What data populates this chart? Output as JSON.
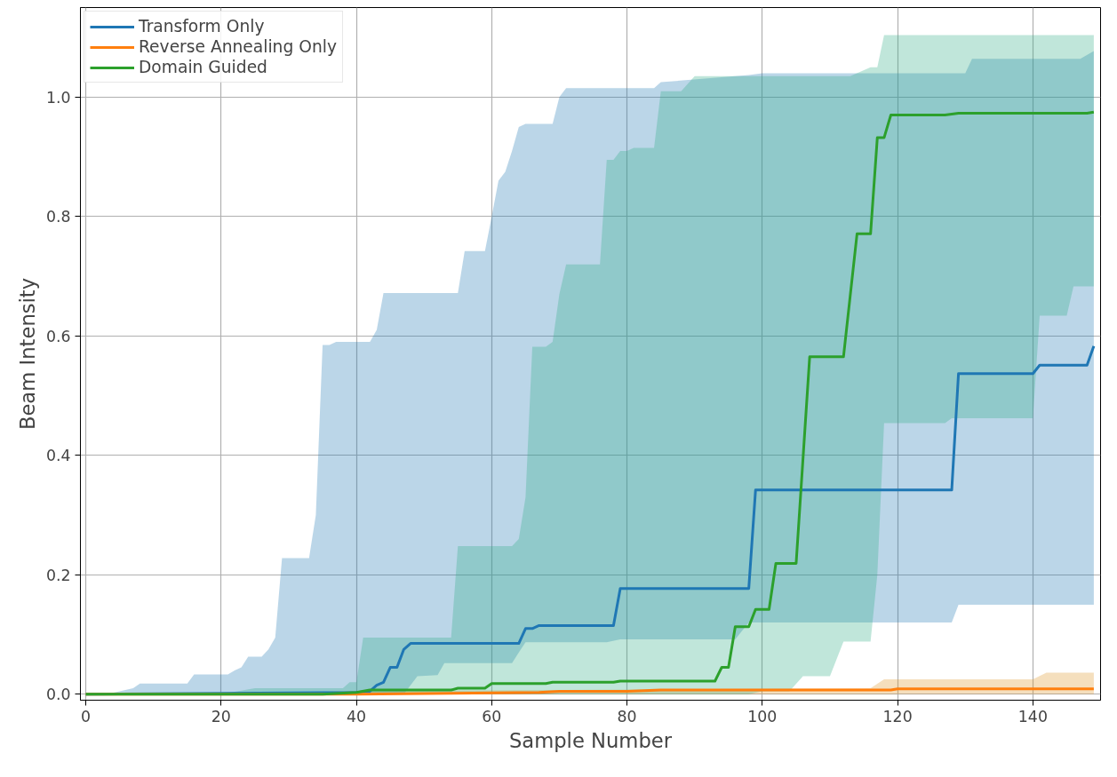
{
  "chart_data": {
    "type": "line",
    "xlabel": "Sample Number",
    "ylabel": "Beam Intensity",
    "xlim": [
      -0.8,
      150
    ],
    "ylim": [
      -0.01,
      1.15
    ],
    "xticks": [
      0,
      20,
      40,
      60,
      80,
      100,
      120,
      140
    ],
    "yticks": [
      {
        "value": 0,
        "label": "0.0"
      },
      {
        "value": 0.2,
        "label": "0.2"
      },
      {
        "value": 0.4,
        "label": "0.4"
      },
      {
        "value": 0.6,
        "label": "0.6"
      },
      {
        "value": 0.8,
        "label": "0.8"
      },
      {
        "value": 1.0,
        "label": "1.0"
      }
    ],
    "grid": true,
    "legend": "top left",
    "line_style": "solid",
    "marker": "none",
    "series": [
      {
        "color": "#1f77b4",
        "x": [
          0,
          3,
          5,
          7,
          8,
          15,
          16,
          21,
          22,
          23,
          24,
          26,
          27,
          28,
          29,
          33,
          34,
          35,
          36,
          37,
          42,
          43,
          44,
          47,
          49,
          52,
          53,
          55,
          56,
          59,
          60,
          61,
          62,
          63,
          64,
          65,
          69,
          70,
          71,
          77,
          79,
          84,
          85,
          96,
          98,
          100,
          128,
          129,
          130,
          131,
          147,
          149
        ],
        "values": [
          null,
          null,
          null,
          null,
          null,
          null,
          null,
          null,
          null,
          null,
          null,
          null,
          null,
          null,
          null,
          null,
          null,
          null,
          null,
          null,
          null,
          null,
          null,
          null,
          null,
          null,
          null,
          null,
          null,
          null,
          null,
          null,
          null,
          null,
          null,
          null,
          null,
          null,
          null,
          null,
          null,
          null,
          null,
          null,
          null,
          null,
          null,
          null,
          null,
          null,
          null,
          null
        ],
        "upper": [
          0,
          0,
          0.005,
          0.01,
          0.018,
          0.018,
          0.033,
          0.033,
          0.04,
          0.045,
          0.063,
          0.063,
          0.075,
          0.095,
          0.228,
          0.228,
          0.3,
          0.585,
          0.585,
          0.59,
          0.59,
          0.61,
          0.672,
          0.672,
          0.672,
          0.672,
          0.672,
          0.672,
          0.742,
          0.742,
          0.8,
          0.86,
          0.875,
          0.91,
          0.95,
          0.955,
          0.955,
          1.0,
          1.015,
          1.015,
          1.015,
          1.015,
          1.025,
          1.035,
          1.037,
          1.04,
          1.04,
          1.04,
          1.04,
          1.064,
          1.064,
          1.077
        ],
        "lower": [
          0,
          0,
          0,
          0,
          0,
          0,
          0,
          0,
          0,
          0,
          0,
          0,
          0,
          0,
          0,
          0,
          0,
          0,
          0,
          0,
          0,
          0,
          0,
          0,
          0.03,
          0.032,
          0.052,
          0.052,
          0.052,
          0.052,
          0.052,
          0.052,
          0.052,
          0.052,
          0.07,
          0.087,
          0.087,
          0.087,
          0.087,
          0.087,
          0.092,
          0.092,
          0.092,
          0.092,
          0.12,
          0.12,
          0.12,
          0.15,
          0.15,
          0.15,
          0.15,
          0.15
        ]
      },
      {
        "color": "#de9426",
        "x": [
          0,
          40,
          116,
          118,
          140,
          142,
          149
        ],
        "values": [
          null,
          null,
          null,
          null,
          null,
          null,
          null
        ],
        "upper": [
          0,
          0.005,
          0.01,
          0.025,
          0.025,
          0.036,
          0.036
        ],
        "lower": [
          0,
          0,
          0,
          0,
          0,
          0,
          0
        ]
      },
      {
        "color": "#2dac84",
        "x": [
          0,
          20,
          25,
          38,
          39,
          40,
          41,
          54,
          55,
          63,
          64,
          65,
          66,
          68,
          69,
          70,
          71,
          76,
          77,
          78,
          79,
          80,
          81,
          84,
          85,
          88,
          90,
          98,
          100,
          104,
          106,
          110,
          112,
          113,
          116,
          117,
          118,
          127,
          128,
          140,
          141,
          145,
          146,
          149
        ],
        "values": [
          null,
          null,
          null,
          null,
          null,
          null,
          null,
          null,
          null,
          null,
          null,
          null,
          null,
          null,
          null,
          null,
          null,
          null,
          null,
          null,
          null,
          null,
          null,
          null,
          null,
          null,
          null,
          null,
          null,
          null,
          null,
          null,
          null,
          null,
          null,
          null,
          null,
          null,
          null,
          null,
          null,
          null,
          null,
          null
        ],
        "upper": [
          0,
          0,
          0.01,
          0.01,
          0.02,
          0.02,
          0.095,
          0.095,
          0.248,
          0.248,
          0.26,
          0.33,
          0.582,
          0.582,
          0.59,
          0.67,
          0.72,
          0.72,
          0.895,
          0.895,
          0.91,
          0.91,
          0.915,
          0.915,
          1.01,
          1.01,
          1.035,
          1.035,
          1.035,
          1.035,
          1.035,
          1.035,
          1.035,
          1.035,
          1.05,
          1.05,
          1.104,
          1.104,
          1.104,
          1.104,
          1.104,
          1.104,
          1.104,
          1.104
        ],
        "lower": [
          0,
          0,
          0,
          0,
          0,
          0,
          0,
          0,
          0,
          0,
          0,
          0,
          0,
          0,
          0,
          0,
          0,
          0,
          0,
          0,
          0,
          0,
          0,
          0,
          0,
          0,
          0,
          0,
          0.005,
          0.005,
          0.03,
          0.03,
          0.088,
          0.088,
          0.088,
          0.2,
          0.454,
          0.454,
          0.462,
          0.462,
          0.634,
          0.634,
          0.683,
          0.683
        ]
      },
      {
        "name": "Transform Only",
        "color": "#1f77b4",
        "x": [
          0,
          40,
          42,
          43,
          44,
          45,
          46,
          47,
          48,
          64,
          65,
          66,
          67,
          78,
          79,
          98,
          99,
          128,
          129,
          140,
          141,
          148,
          149
        ],
        "values": [
          0,
          0.003,
          0.005,
          0.015,
          0.02,
          0.045,
          0.045,
          0.075,
          0.085,
          0.085,
          0.11,
          0.11,
          0.115,
          0.115,
          0.177,
          0.177,
          0.342,
          0.342,
          0.537,
          0.537,
          0.551,
          0.551,
          0.583
        ]
      },
      {
        "name": "Reverse Annealing Only",
        "color": "#ff7f0e",
        "x": [
          0,
          40,
          67,
          70,
          80,
          85,
          119,
          120,
          149
        ],
        "values": [
          0,
          0,
          0.003,
          0.005,
          0.005,
          0.007,
          0.007,
          0.009,
          0.009
        ]
      },
      {
        "name": "Domain Guided",
        "color": "#2ca02c",
        "x": [
          0,
          35,
          40,
          42,
          54,
          55,
          59,
          60,
          68,
          69,
          78,
          79,
          93,
          94,
          95,
          96,
          98,
          99,
          101,
          102,
          105,
          107,
          112,
          114,
          116,
          117,
          118,
          119,
          127,
          129,
          148,
          149
        ],
        "values": [
          0,
          0,
          0.003,
          0.007,
          0.007,
          0.01,
          0.01,
          0.018,
          0.018,
          0.02,
          0.02,
          0.022,
          0.022,
          0.045,
          0.045,
          0.113,
          0.113,
          0.142,
          0.142,
          0.219,
          0.219,
          0.565,
          0.565,
          0.771,
          0.771,
          0.932,
          0.932,
          0.97,
          0.97,
          0.973,
          0.973,
          0.975
        ]
      }
    ]
  }
}
